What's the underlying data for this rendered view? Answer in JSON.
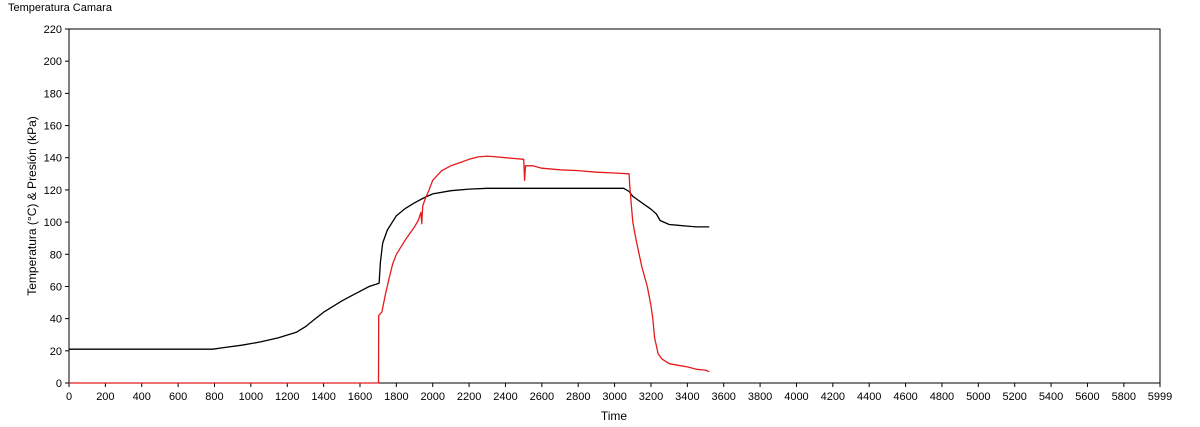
{
  "window": {
    "title": "Temperatura Camara"
  },
  "chart_data": {
    "type": "line",
    "title": "Temperatura Camara",
    "xlabel": "Time",
    "ylabel": "Temperatura (°C) & Presión (kPa)",
    "xlim": [
      0,
      5999
    ],
    "ylim": [
      0,
      220
    ],
    "x_ticks": [
      0,
      200,
      400,
      600,
      800,
      1000,
      1200,
      1400,
      1600,
      1800,
      2000,
      2200,
      2400,
      2600,
      2800,
      3000,
      3200,
      3400,
      3600,
      3800,
      4000,
      4200,
      4400,
      4600,
      4800,
      5000,
      5200,
      5400,
      5600,
      5800,
      5999
    ],
    "y_ticks": [
      0,
      20,
      40,
      60,
      80,
      100,
      120,
      140,
      160,
      180,
      200,
      220
    ],
    "grid": false,
    "series": [
      {
        "color": "#000000",
        "points": [
          [
            0,
            21
          ],
          [
            200,
            21
          ],
          [
            400,
            21
          ],
          [
            600,
            21
          ],
          [
            790,
            21
          ],
          [
            850,
            22
          ],
          [
            950,
            23.5
          ],
          [
            1050,
            25.5
          ],
          [
            1150,
            28
          ],
          [
            1250,
            31.5
          ],
          [
            1300,
            35
          ],
          [
            1350,
            39.5
          ],
          [
            1400,
            44
          ],
          [
            1450,
            47.5
          ],
          [
            1500,
            51
          ],
          [
            1550,
            54
          ],
          [
            1600,
            57
          ],
          [
            1650,
            60
          ],
          [
            1705,
            62
          ],
          [
            1712,
            75
          ],
          [
            1725,
            87
          ],
          [
            1750,
            95
          ],
          [
            1800,
            104
          ],
          [
            1850,
            108.5
          ],
          [
            1900,
            112
          ],
          [
            1950,
            115
          ],
          [
            2000,
            117.5
          ],
          [
            2100,
            119.5
          ],
          [
            2200,
            120.5
          ],
          [
            2300,
            121
          ],
          [
            2400,
            121
          ],
          [
            2500,
            121
          ],
          [
            2700,
            121
          ],
          [
            2900,
            121
          ],
          [
            3050,
            121
          ],
          [
            3080,
            119
          ],
          [
            3100,
            116
          ],
          [
            3150,
            112
          ],
          [
            3200,
            108
          ],
          [
            3230,
            105
          ],
          [
            3250,
            101
          ],
          [
            3300,
            98.5
          ],
          [
            3350,
            98
          ],
          [
            3400,
            97.5
          ],
          [
            3450,
            97
          ],
          [
            3520,
            97
          ]
        ]
      },
      {
        "color": "#e41a1c",
        "points": [
          [
            0,
            0
          ],
          [
            400,
            0
          ],
          [
            800,
            0
          ],
          [
            1200,
            0
          ],
          [
            1600,
            0
          ],
          [
            1702,
            0
          ],
          [
            1703,
            42
          ],
          [
            1720,
            44
          ],
          [
            1740,
            55
          ],
          [
            1760,
            65
          ],
          [
            1780,
            74
          ],
          [
            1800,
            80
          ],
          [
            1850,
            89
          ],
          [
            1900,
            97
          ],
          [
            1920,
            101
          ],
          [
            1935,
            106
          ],
          [
            1940,
            99
          ],
          [
            1945,
            110
          ],
          [
            1960,
            115
          ],
          [
            1980,
            120
          ],
          [
            2000,
            126
          ],
          [
            2050,
            132
          ],
          [
            2100,
            135
          ],
          [
            2150,
            137
          ],
          [
            2200,
            139
          ],
          [
            2250,
            140.5
          ],
          [
            2300,
            141
          ],
          [
            2350,
            140.5
          ],
          [
            2400,
            140
          ],
          [
            2450,
            139.5
          ],
          [
            2500,
            139
          ],
          [
            2505,
            126
          ],
          [
            2510,
            135
          ],
          [
            2550,
            135
          ],
          [
            2600,
            133.5
          ],
          [
            2700,
            132.5
          ],
          [
            2800,
            132
          ],
          [
            2900,
            131
          ],
          [
            3000,
            130.5
          ],
          [
            3080,
            130
          ],
          [
            3083,
            123
          ],
          [
            3090,
            113
          ],
          [
            3100,
            100
          ],
          [
            3120,
            88
          ],
          [
            3150,
            72
          ],
          [
            3180,
            60
          ],
          [
            3200,
            48
          ],
          [
            3210,
            40
          ],
          [
            3220,
            28
          ],
          [
            3240,
            18
          ],
          [
            3260,
            15
          ],
          [
            3300,
            12
          ],
          [
            3350,
            11
          ],
          [
            3400,
            10
          ],
          [
            3450,
            8.5
          ],
          [
            3500,
            8
          ],
          [
            3520,
            7
          ]
        ]
      }
    ]
  }
}
